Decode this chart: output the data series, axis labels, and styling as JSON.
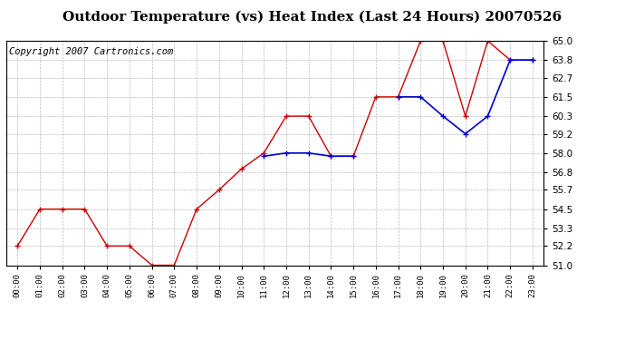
{
  "title": "Outdoor Temperature (vs) Heat Index (Last 24 Hours) 20070526",
  "copyright": "Copyright 2007 Cartronics.com",
  "x_labels": [
    "00:00",
    "01:00",
    "02:00",
    "03:00",
    "04:00",
    "05:00",
    "06:00",
    "07:00",
    "08:00",
    "09:00",
    "10:00",
    "11:00",
    "12:00",
    "13:00",
    "14:00",
    "15:00",
    "16:00",
    "17:00",
    "18:00",
    "19:00",
    "20:00",
    "21:00",
    "22:00",
    "23:00"
  ],
  "temp_red": [
    52.2,
    54.5,
    54.5,
    54.5,
    52.2,
    52.2,
    51.0,
    51.0,
    54.5,
    55.7,
    57.0,
    58.0,
    60.3,
    60.3,
    57.8,
    57.8,
    61.5,
    61.5,
    65.0,
    65.0,
    60.3,
    65.0,
    63.8,
    63.8
  ],
  "heat_blue": [
    null,
    null,
    null,
    null,
    null,
    null,
    null,
    null,
    null,
    null,
    null,
    57.8,
    58.0,
    58.0,
    57.8,
    57.8,
    null,
    61.5,
    61.5,
    60.3,
    59.2,
    60.3,
    63.8,
    63.8
  ],
  "ylim": [
    51.0,
    65.0
  ],
  "yticks": [
    51.0,
    52.2,
    53.3,
    54.5,
    55.7,
    56.8,
    58.0,
    59.2,
    60.3,
    61.5,
    62.7,
    63.8,
    65.0
  ],
  "red_color": "#cc0000",
  "blue_color": "#0000cc",
  "bg_color": "#ffffff",
  "grid_color": "#bbbbbb",
  "title_fontsize": 11,
  "copyright_fontsize": 7.5
}
